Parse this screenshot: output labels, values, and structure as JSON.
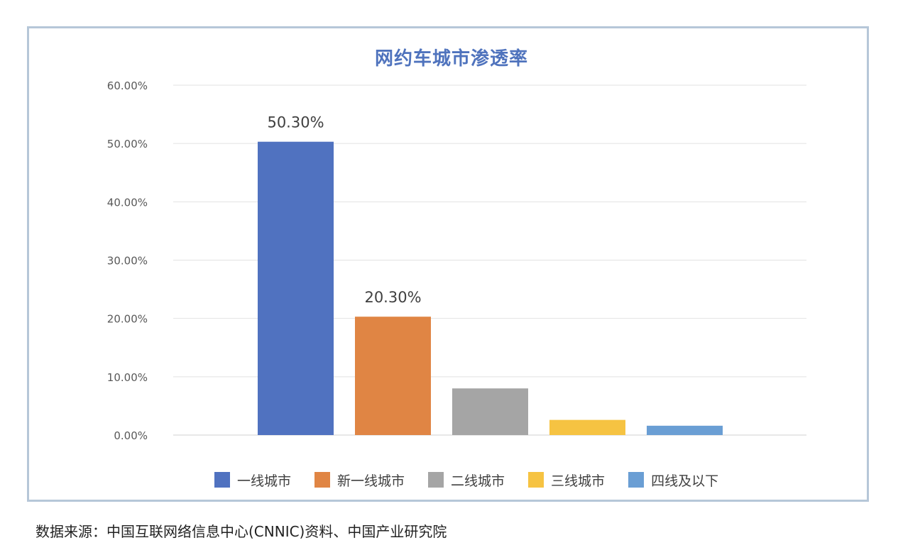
{
  "chart_data": {
    "type": "bar",
    "title": "网约车城市渗透率",
    "categories": [
      "一线城市",
      "新一线城市",
      "二线城市",
      "三线城市",
      "四线及以下"
    ],
    "values": [
      50.3,
      20.3,
      8.0,
      2.6,
      1.6
    ],
    "data_labels": [
      "50.30%",
      "20.30%",
      "",
      "",
      ""
    ],
    "colors": [
      "#5072c0",
      "#e08544",
      "#a5a5a5",
      "#f6c342",
      "#6a9ed4"
    ],
    "ylim": [
      0,
      60
    ],
    "yticks": [
      "0.00%",
      "10.00%",
      "20.00%",
      "30.00%",
      "40.00%",
      "50.00%",
      "60.00%"
    ],
    "xlabel": "",
    "ylabel": "",
    "grid": true,
    "legend_position": "bottom"
  },
  "source_note": "数据来源：中国互联网络信息中心(CNNIC)资料、中国产业研究院"
}
